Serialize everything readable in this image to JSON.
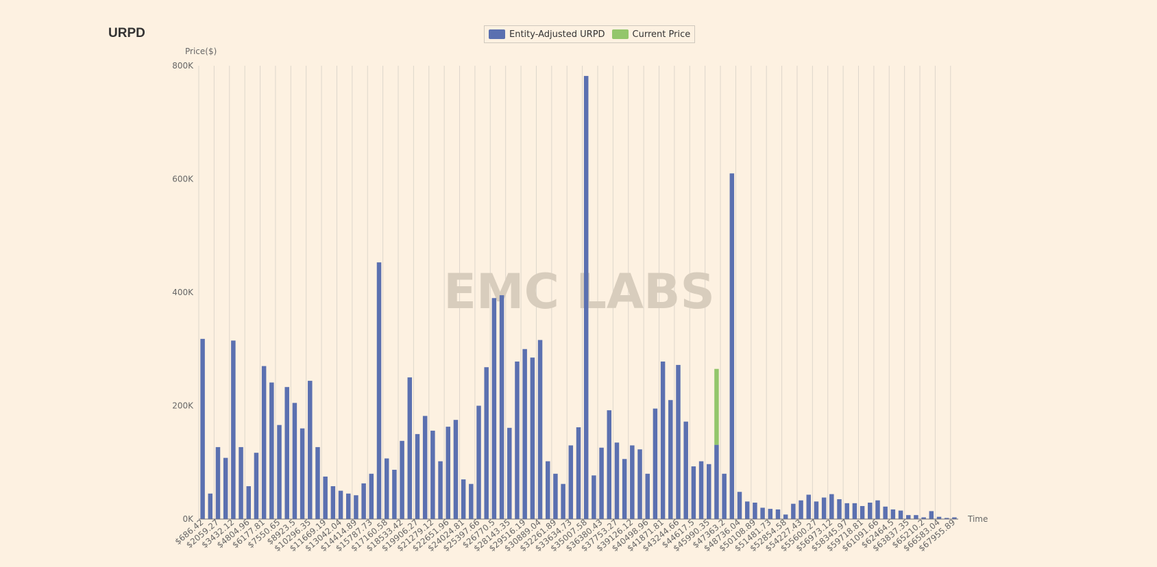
{
  "title": "URPD",
  "legend": {
    "items": [
      {
        "label": "Entity-Adjusted URPD",
        "color": "#5b70b0"
      },
      {
        "label": "Current Price",
        "color": "#93c66b"
      }
    ]
  },
  "watermark": "EMC LABS",
  "chart_data": {
    "type": "bar",
    "title": "URPD",
    "ylabel": "Price($)",
    "xlabel": "Time",
    "ylim": [
      0,
      800000
    ],
    "yticks": [
      "0K",
      "200K",
      "400K",
      "600K",
      "800K"
    ],
    "grid": "vertical",
    "legend_position": "top-center",
    "x_labels": [
      "$686.42",
      "$2059.27",
      "$3432.12",
      "$4804.96",
      "$6177.81",
      "$7550.65",
      "$8923.5",
      "$10296.35",
      "$11669.19",
      "$13042.04",
      "$14414.89",
      "$15787.73",
      "$17160.58",
      "$18533.42",
      "$19906.27",
      "$21279.12",
      "$22651.96",
      "$24024.81",
      "$25397.66",
      "$26770.5",
      "$28143.35",
      "$29516.19",
      "$30889.04",
      "$32261.89",
      "$33634.73",
      "$35007.58",
      "$36380.43",
      "$37753.27",
      "$39126.12",
      "$40498.96",
      "$41871.81",
      "$43244.66",
      "$44617.5",
      "$45990.35",
      "$47363.2",
      "$48736.04",
      "$50108.89",
      "$51481.73",
      "$52854.58",
      "$54227.43",
      "$55600.27",
      "$56973.12",
      "$58345.97",
      "$59718.81",
      "$61091.66",
      "$62464.5",
      "$63837.35",
      "$65210.2",
      "$66583.04",
      "$67955.89"
    ],
    "series": [
      {
        "name": "Entity-Adjusted URPD",
        "color": "#5b70b0",
        "values": [
          318000,
          45000,
          127000,
          108000,
          315000,
          127000,
          58000,
          117000,
          270000,
          241000,
          166000,
          233000,
          205000,
          160000,
          244000,
          127000,
          75000,
          58000,
          50000,
          45000,
          42000,
          63000,
          80000,
          453000,
          107000,
          87000,
          138000,
          250000,
          150000,
          182000,
          156000,
          102000,
          163000,
          175000,
          70000,
          62000,
          200000,
          268000,
          390000,
          395000,
          161000,
          278000,
          300000,
          285000,
          316000,
          102000,
          80000,
          62000,
          130000,
          162000,
          782000,
          77000,
          126000,
          192000,
          135000,
          106000,
          130000,
          123000,
          80000,
          195000,
          278000,
          210000,
          272000,
          172000,
          93000,
          102000,
          97000,
          131000,
          80000,
          610000,
          48000,
          31000,
          29000,
          20000,
          18000,
          17000,
          8000,
          27000,
          33000,
          43000,
          31000,
          38000,
          44000,
          35000,
          28000,
          28000,
          23000,
          29000,
          33000,
          22000,
          17000,
          15000,
          7000,
          7000,
          3000,
          14000,
          4000,
          2000,
          3000
        ]
      },
      {
        "name": "Current Price",
        "color": "#93c66b",
        "index": 67,
        "base": 131000,
        "value": 265000
      }
    ]
  }
}
